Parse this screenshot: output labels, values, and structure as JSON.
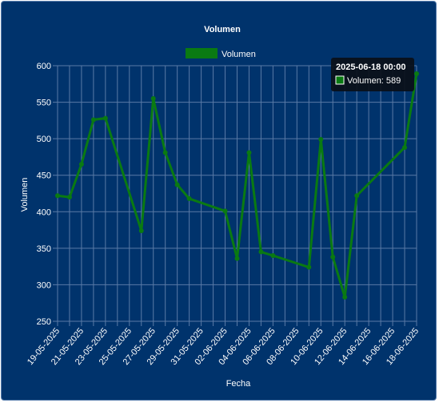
{
  "chart_data": {
    "type": "line",
    "title": "Volumen",
    "xlabel": "Fecha",
    "ylabel": "Volumen",
    "ylim": [
      250,
      600
    ],
    "yticks": [
      250,
      300,
      350,
      400,
      450,
      500,
      550,
      600
    ],
    "xlim": [
      "2025-05-19",
      "2025-06-18"
    ],
    "x_tick_labels": [
      "19-05-2025",
      "21-05-2025",
      "23-05-2025",
      "25-05-2025",
      "27-05-2025",
      "29-05-2025",
      "31-05-2025",
      "02-06-2025",
      "04-06-2025",
      "06-06-2025",
      "08-06-2025",
      "10-06-2025",
      "12-06-2025",
      "14-06-2025",
      "16-06-2025",
      "18-06-2025"
    ],
    "grid": true,
    "legend_position": "top",
    "series": [
      {
        "name": "Volumen",
        "color": "#0a7a12",
        "points": [
          {
            "x": "2025-05-19",
            "y": 422
          },
          {
            "x": "2025-05-20",
            "y": 420
          },
          {
            "x": "2025-05-21",
            "y": 465
          },
          {
            "x": "2025-05-22",
            "y": 526
          },
          {
            "x": "2025-05-23",
            "y": 528
          },
          {
            "x": "2025-05-26",
            "y": 374
          },
          {
            "x": "2025-05-27",
            "y": 555
          },
          {
            "x": "2025-05-28",
            "y": 481
          },
          {
            "x": "2025-05-29",
            "y": 437
          },
          {
            "x": "2025-05-30",
            "y": 418
          },
          {
            "x": "2025-06-02",
            "y": 401
          },
          {
            "x": "2025-06-03",
            "y": 336
          },
          {
            "x": "2025-06-04",
            "y": 481
          },
          {
            "x": "2025-06-05",
            "y": 345
          },
          {
            "x": "2025-06-06",
            "y": 340
          },
          {
            "x": "2025-06-09",
            "y": 324
          },
          {
            "x": "2025-06-10",
            "y": 499
          },
          {
            "x": "2025-06-11",
            "y": 338
          },
          {
            "x": "2025-06-12",
            "y": 283
          },
          {
            "x": "2025-06-13",
            "y": 422
          },
          {
            "x": "2025-06-17",
            "y": 488
          },
          {
            "x": "2025-06-18",
            "y": 589
          }
        ]
      }
    ],
    "tooltip": {
      "title": "2025-06-18 00:00",
      "body": "Volumen: 589"
    }
  }
}
